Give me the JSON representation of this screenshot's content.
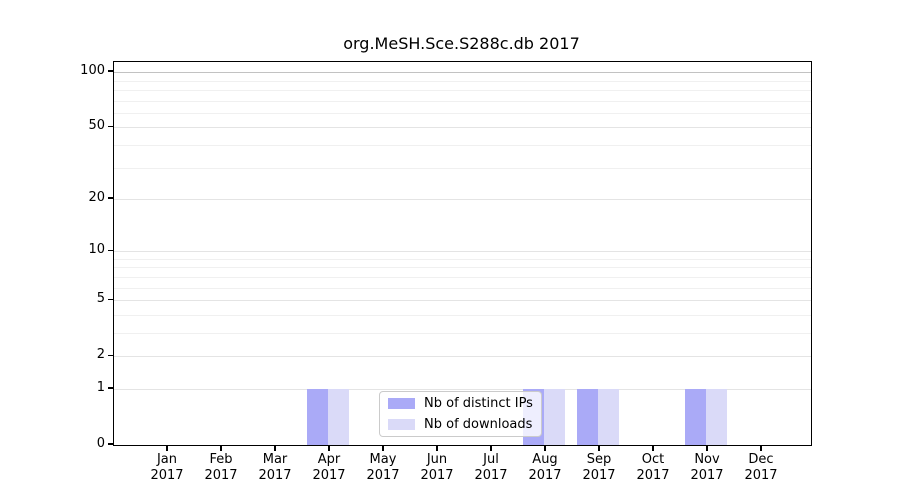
{
  "page": {
    "title": "org.MeSH.Sce.S288c.db 2017"
  },
  "chart_data": {
    "type": "bar",
    "title": "org.MeSH.Sce.S288c.db 2017",
    "categories": [
      "Jan",
      "Feb",
      "Mar",
      "Apr",
      "May",
      "Jun",
      "Jul",
      "Aug",
      "Sep",
      "Oct",
      "Nov",
      "Dec"
    ],
    "category_year": "2017",
    "series": [
      {
        "name": "Nb of distinct IPs",
        "color": "#aaaaf7",
        "values": [
          0,
          0,
          0,
          1,
          0,
          0,
          0,
          1,
          1,
          0,
          1,
          0
        ]
      },
      {
        "name": "Nb of downloads",
        "color": "#dadaf8",
        "values": [
          0,
          0,
          0,
          1,
          0,
          0,
          0,
          1,
          1,
          0,
          1,
          0
        ]
      }
    ],
    "xlabel": "",
    "ylabel": "",
    "y_scale": "log1p",
    "y_axis_max": 113.5,
    "y_major_ticks": [
      0,
      1,
      2,
      5,
      10,
      20,
      50,
      100
    ],
    "y_minor_gridlines": [
      3,
      4,
      6,
      7,
      8,
      9,
      30,
      40,
      60,
      70,
      80,
      90
    ],
    "grid": "horizontal",
    "legend_position": "bottom-center",
    "colors": {
      "axis": "#000000",
      "grid_top_line": "#c2c2c2",
      "grid_major": "#e4e4e4",
      "grid_minor": "#f0f0f0",
      "text": "#000000"
    }
  }
}
